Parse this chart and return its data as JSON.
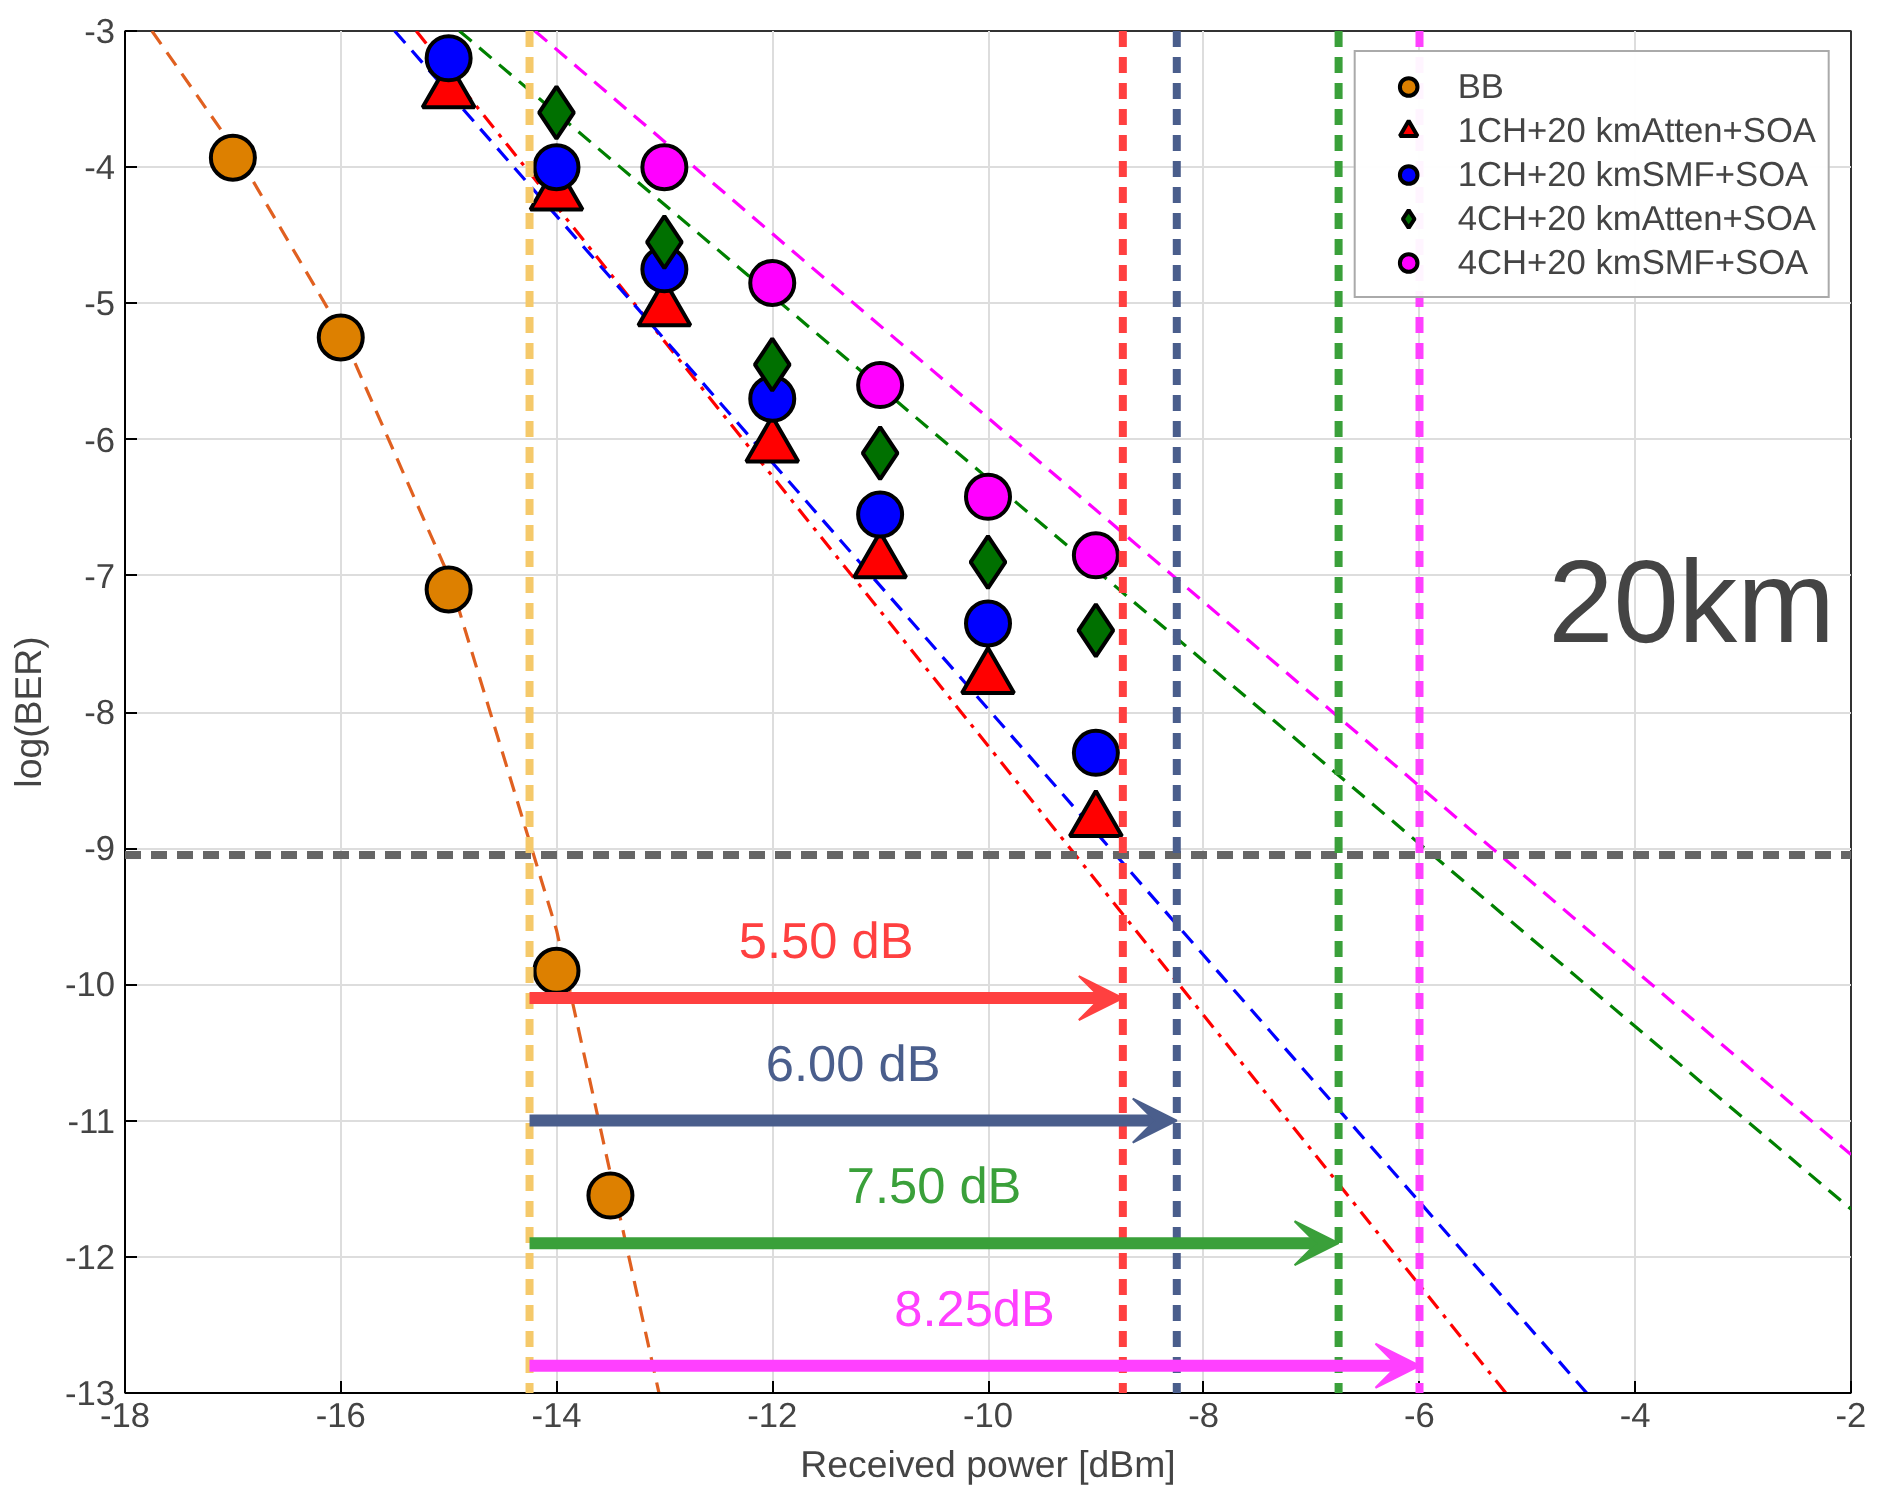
{
  "chart_data": {
    "type": "scatter",
    "xlabel": "Received power [dBm]",
    "ylabel": "log(BER)",
    "xlim": [
      -18,
      -2
    ],
    "ylim": [
      -13,
      -3
    ],
    "xticks": [
      -18,
      -16,
      -14,
      -12,
      -10,
      -8,
      -6,
      -4,
      -2
    ],
    "yticks": [
      -3,
      -4,
      -5,
      -6,
      -7,
      -8,
      -9,
      -10,
      -11,
      -12,
      -13
    ],
    "grid": true,
    "legend": "top right",
    "series": [
      {
        "name": "BB",
        "marker": "circle",
        "color": "#dd8000",
        "x": [
          -17,
          -16,
          -15,
          -14,
          -13.5
        ],
        "values": [
          -3.93,
          -5.25,
          -7.1,
          -9.9,
          -11.55
        ]
      },
      {
        "name": "1CH+20 kmAtten+SOA",
        "marker": "triangle",
        "color": "#ff0000",
        "x": [
          -15,
          -14,
          -13,
          -12,
          -11,
          -10,
          -9
        ],
        "values": [
          -3.45,
          -4.2,
          -5.05,
          -6.05,
          -6.9,
          -7.75,
          -8.8
        ]
      },
      {
        "name": "1CH+20 kmSMF+SOA",
        "marker": "circle",
        "color": "#0000ff",
        "x": [
          -15,
          -14,
          -13,
          -12,
          -11,
          -10,
          -9
        ],
        "values": [
          -3.2,
          -4.0,
          -4.75,
          -5.7,
          -6.55,
          -7.35,
          -8.3
        ]
      },
      {
        "name": "4CH+20 kmAtten+SOA",
        "marker": "diamond",
        "color": "#007000",
        "x": [
          -14,
          -13,
          -12,
          -11,
          -10,
          -9
        ],
        "values": [
          -3.6,
          -4.55,
          -5.45,
          -6.1,
          -6.9,
          -7.4
        ]
      },
      {
        "name": "4CH+20 kmSMF+SOA",
        "marker": "circle",
        "color": "#ff00ff",
        "x": [
          -13,
          -12,
          -11,
          -10,
          -9
        ],
        "values": [
          -4.0,
          -4.85,
          -5.6,
          -6.42,
          -6.85
        ]
      },
      {
        "type": "line",
        "line_style": "dashed",
        "color": "#e06020",
        "x": [
          -17.75,
          -17,
          -16,
          -15,
          -14,
          -13.05
        ],
        "values": [
          -3,
          -3.85,
          -5.2,
          -7.0,
          -9.6,
          -13
        ]
      },
      {
        "type": "line",
        "line_style": "dashdot",
        "color": "#ff0000",
        "x": [
          -15.3,
          -5.2
        ],
        "values": [
          -3,
          -13
        ]
      },
      {
        "type": "line",
        "line_style": "dashed",
        "color": "#0000ff",
        "x": [
          -15.5,
          -4.45
        ],
        "values": [
          -3,
          -13
        ]
      },
      {
        "type": "line",
        "line_style": "dashed",
        "color": "#008000",
        "x": [
          -14.9,
          -2
        ],
        "values": [
          -3,
          -11.65
        ]
      },
      {
        "type": "line",
        "line_style": "dashed",
        "color": "#ff00ff",
        "x": [
          -14.2,
          -2
        ],
        "values": [
          -3,
          -11.25
        ]
      }
    ],
    "ref_lines": [
      {
        "axis": "y",
        "value": -9.05,
        "color": "#666666",
        "line_style": "dashed"
      },
      {
        "axis": "x",
        "value": -14.25,
        "color": "#f5c96a",
        "line_style": "dashed"
      },
      {
        "axis": "x",
        "value": -8.75,
        "color": "#ff4040",
        "line_style": "dashed"
      },
      {
        "axis": "x",
        "value": -8.25,
        "color": "#4a5e8c",
        "line_style": "dashed"
      },
      {
        "axis": "x",
        "value": -6.75,
        "color": "#3aa03a",
        "line_style": "dashed"
      },
      {
        "axis": "x",
        "value": -6.0,
        "color": "#ff40ff",
        "line_style": "dashed"
      }
    ],
    "annotations": [
      "5.50 dB",
      "6.00 dB",
      "7.50 dB",
      "8.25dB",
      "20km"
    ]
  }
}
